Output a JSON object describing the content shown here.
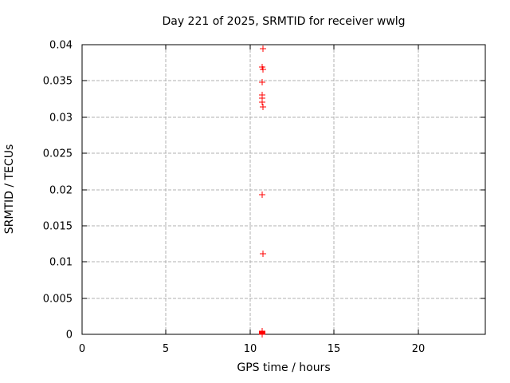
{
  "chart_data": {
    "type": "scatter",
    "title": "Day 221 of 2025, SRMTID for receiver wwlg",
    "xlabel": "GPS time / hours",
    "ylabel": "SRMTID / TECUs",
    "xlim": [
      0,
      24
    ],
    "ylim": [
      0,
      0.04
    ],
    "xticks": {
      "values": [
        0,
        5,
        10,
        15,
        20
      ],
      "labels": [
        "0",
        "5",
        "10",
        "15",
        "20"
      ]
    },
    "yticks": {
      "values": [
        0,
        0.005,
        0.01,
        0.015,
        0.02,
        0.025,
        0.03,
        0.035,
        0.04
      ],
      "labels": [
        "0",
        "0.005",
        "0.01",
        "0.015",
        "0.02",
        "0.025",
        "0.03",
        "0.035",
        "0.04"
      ]
    },
    "grid": true,
    "legend_position": "none",
    "marker": {
      "shape": "plus",
      "color": "#ff0000",
      "half_size": 4
    },
    "series": [
      {
        "name": "SRMTID",
        "points": [
          [
            10.77,
            0.0395
          ],
          [
            10.7,
            0.0369
          ],
          [
            10.77,
            0.0366
          ],
          [
            10.72,
            0.0348
          ],
          [
            10.72,
            0.0331
          ],
          [
            10.72,
            0.0326
          ],
          [
            10.72,
            0.0321
          ],
          [
            10.77,
            0.0314
          ],
          [
            10.72,
            0.0193
          ],
          [
            10.77,
            0.0111
          ],
          [
            10.72,
            0.0004
          ],
          [
            10.72,
            0.0003
          ],
          [
            10.72,
            0.0002
          ],
          [
            10.72,
            0.0001
          ],
          [
            10.72,
            0.0
          ]
        ]
      }
    ]
  },
  "style": {
    "background": "#ffffff",
    "frame_color": "#000000",
    "grid_color": "#b0b0b0",
    "text_color": "#000000",
    "marker_color": "#ff0000"
  }
}
